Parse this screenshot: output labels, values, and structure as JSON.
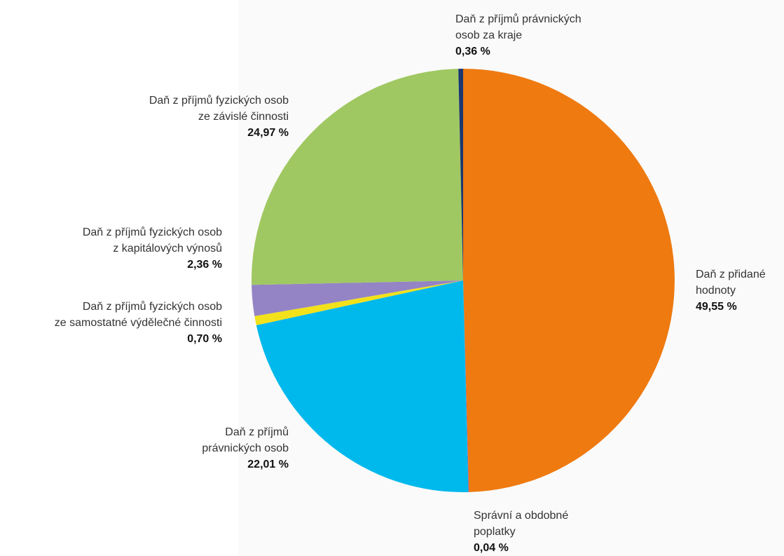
{
  "chart_data": {
    "type": "pie",
    "slices": [
      {
        "label": "Daň z přidané\nhodnoty",
        "value": 49.55,
        "display": "49,55 %",
        "color": "#EE7A10"
      },
      {
        "label": "Správní a obdobné\npoplatky",
        "value": 0.04,
        "display": "0,04 %",
        "color": "#C23B8F"
      },
      {
        "label": "Daň z příjmů\nprávnických osob",
        "value": 22.01,
        "display": "22,01 %",
        "color": "#00B9EC"
      },
      {
        "label": "Daň z příjmů fyzických osob\nze samostatné výdělečné činnosti",
        "value": 0.7,
        "display": "0,70 %",
        "color": "#F2E11B"
      },
      {
        "label": "Daň z příjmů fyzických osob\nz kapitálových výnosů",
        "value": 2.36,
        "display": "2,36 %",
        "color": "#9484C5"
      },
      {
        "label": "Daň z příjmů fyzických osob\nze závislé činnosti",
        "value": 24.97,
        "display": "24,97 %",
        "color": "#A0C862"
      },
      {
        "label": "Daň z příjmů právnických\nosob za kraje",
        "value": 0.36,
        "display": "0,36 %",
        "color": "#1C3770"
      }
    ],
    "start": "12 o'clock",
    "direction": "clockwise"
  }
}
